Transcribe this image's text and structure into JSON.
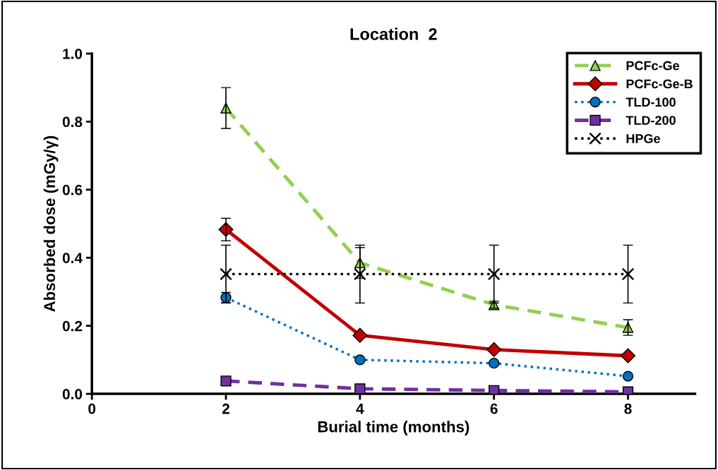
{
  "chart_data": {
    "type": "line",
    "title": "Location  2",
    "xlabel": "Burial time (months)",
    "ylabel": "Absorbed dose (mGy/γ)",
    "x": [
      2,
      4,
      6,
      8
    ],
    "xlim": [
      0,
      9
    ],
    "xticks": [
      0,
      2,
      4,
      6,
      8
    ],
    "ylim": [
      0,
      1.0
    ],
    "yticks": [
      {
        "value": 0,
        "label": "0.0"
      },
      {
        "value": 0.2,
        "label": "0.2"
      },
      {
        "value": 0.4,
        "label": "0.4"
      },
      {
        "value": 0.6,
        "label": "0.6"
      },
      {
        "value": 0.8,
        "label": "0.8"
      },
      {
        "value": 1.0,
        "label": "1.0"
      }
    ],
    "grid": false,
    "legend": "top right",
    "series": [
      {
        "name": "PCFc-Ge",
        "color": "#92d050",
        "values": [
          0.84,
          0.385,
          0.262,
          0.195
        ],
        "errors": [
          0.06,
          0.045,
          0.01,
          0.023
        ],
        "marker": "triangle",
        "line_style": "dashed"
      },
      {
        "name": "PCFc-Ge-B",
        "color": "#c00000",
        "values": [
          0.483,
          0.172,
          0.13,
          0.112
        ],
        "errors": [
          0.033,
          null,
          null,
          null
        ],
        "marker": "diamond",
        "line_style": "solid"
      },
      {
        "name": "TLD-100",
        "color": "#0070c0",
        "values": [
          0.283,
          0.1,
          0.09,
          0.052
        ],
        "errors": [
          0.015,
          null,
          null,
          null
        ],
        "marker": "circle",
        "line_style": "dotted"
      },
      {
        "name": "TLD-200",
        "color": "#7030a0",
        "values": [
          0.038,
          0.015,
          0.01,
          0.006
        ],
        "marker": "square",
        "line_style": "dashed"
      },
      {
        "name": "HPGe",
        "color": "#000000",
        "values": [
          0.352,
          0.352,
          0.352,
          0.352
        ],
        "errors": [
          0.085,
          0.085,
          0.085,
          0.085
        ],
        "marker": "cross",
        "line_style": "dotted"
      }
    ]
  }
}
